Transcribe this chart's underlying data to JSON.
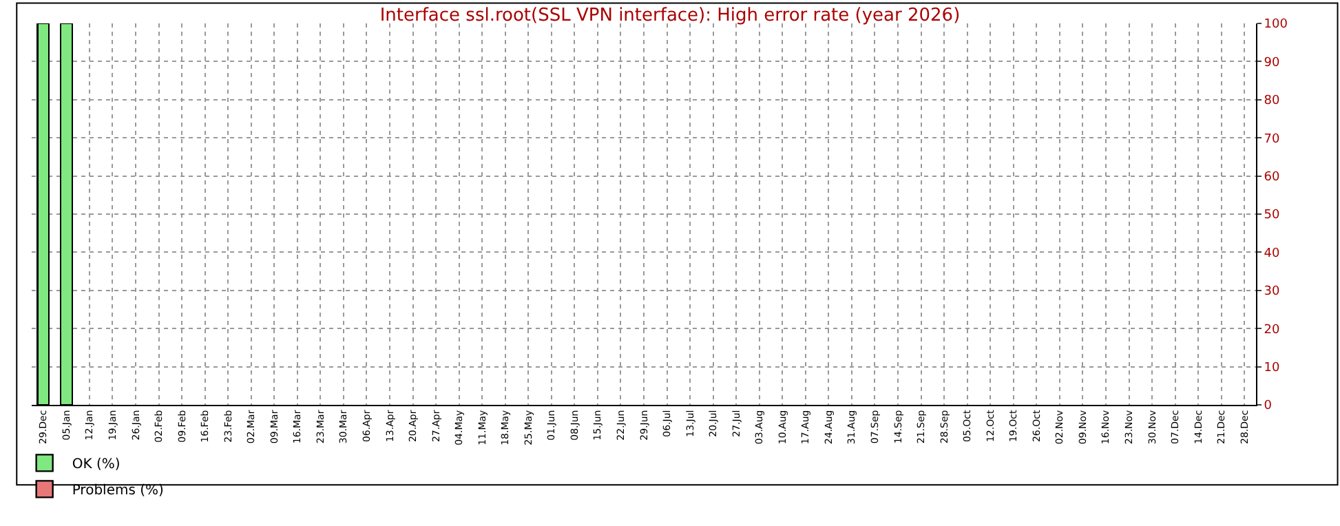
{
  "chart_data": {
    "type": "bar",
    "title": "Interface ssl.root(SSL VPN interface): High error rate (year 2026)",
    "stacked": true,
    "categories": [
      "29.Dec",
      "05.Jan",
      "12.Jan",
      "19.Jan",
      "26.Jan",
      "02.Feb",
      "09.Feb",
      "16.Feb",
      "23.Feb",
      "02.Mar",
      "09.Mar",
      "16.Mar",
      "23.Mar",
      "30.Mar",
      "06.Apr",
      "13.Apr",
      "20.Apr",
      "27.Apr",
      "04.May",
      "11.May",
      "18.May",
      "25.May",
      "01.Jun",
      "08.Jun",
      "15.Jun",
      "22.Jun",
      "29.Jun",
      "06.Jul",
      "13.Jul",
      "20.Jul",
      "27.Jul",
      "03.Aug",
      "10.Aug",
      "17.Aug",
      "24.Aug",
      "31.Aug",
      "07.Sep",
      "14.Sep",
      "21.Sep",
      "28.Sep",
      "05.Oct",
      "12.Oct",
      "19.Oct",
      "26.Oct",
      "02.Nov",
      "09.Nov",
      "16.Nov",
      "23.Nov",
      "30.Nov",
      "07.Dec",
      "14.Dec",
      "21.Dec",
      "28.Dec"
    ],
    "series": [
      {
        "name": "OK (%)",
        "color": "#80e880",
        "values": [
          100,
          100,
          null,
          null,
          null,
          null,
          null,
          null,
          null,
          null,
          null,
          null,
          null,
          null,
          null,
          null,
          null,
          null,
          null,
          null,
          null,
          null,
          null,
          null,
          null,
          null,
          null,
          null,
          null,
          null,
          null,
          null,
          null,
          null,
          null,
          null,
          null,
          null,
          null,
          null,
          null,
          null,
          null,
          null,
          null,
          null,
          null,
          null,
          null,
          null,
          null,
          null,
          null
        ]
      },
      {
        "name": "Problems (%)",
        "color": "#e87878",
        "values": [
          null,
          null,
          null,
          null,
          null,
          null,
          null,
          null,
          null,
          null,
          null,
          null,
          null,
          null,
          null,
          null,
          null,
          null,
          null,
          null,
          null,
          null,
          null,
          null,
          null,
          null,
          null,
          null,
          null,
          null,
          null,
          null,
          null,
          null,
          null,
          null,
          null,
          null,
          null,
          null,
          null,
          null,
          null,
          null,
          null,
          null,
          null,
          null,
          null,
          null,
          null,
          null,
          null
        ]
      }
    ],
    "ylim": [
      0,
      100
    ],
    "yticks": [
      0,
      10,
      20,
      30,
      40,
      50,
      60,
      70,
      80,
      90,
      100
    ],
    "grid": true,
    "legend": "bottom left"
  }
}
